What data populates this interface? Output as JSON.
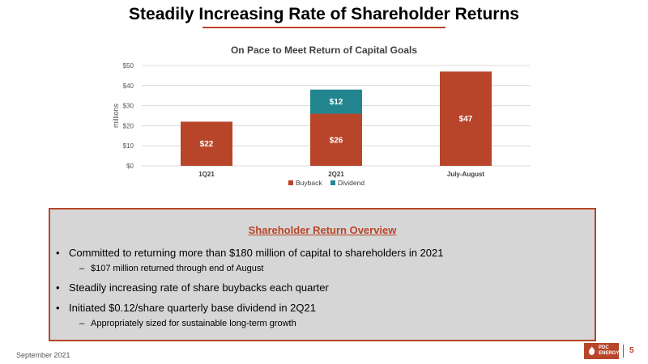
{
  "header": {
    "title": "Steadily Increasing Rate of Shareholder Returns"
  },
  "chart_data": {
    "type": "bar",
    "stacked": true,
    "title": "On Pace to Meet Return of Capital Goals",
    "ylabel": "millions",
    "xlabel": "",
    "categories": [
      "1Q21",
      "2Q21",
      "July-August"
    ],
    "series": [
      {
        "name": "Buyback",
        "values": [
          22,
          26,
          47
        ],
        "labels": [
          "$22",
          "$26",
          "$47"
        ],
        "color": "#b8452a"
      },
      {
        "name": "Dividend",
        "values": [
          0,
          12,
          0
        ],
        "labels": [
          "",
          "$12",
          ""
        ],
        "color": "#23868f"
      }
    ],
    "ylim": [
      0,
      50
    ],
    "yticks": [
      0,
      10,
      20,
      30,
      40,
      50
    ],
    "ytick_labels": [
      "$0",
      "$10",
      "$20",
      "$30",
      "$40",
      "$50"
    ],
    "grid": true,
    "legend_position": "bottom"
  },
  "overview": {
    "title": "Shareholder Return Overview",
    "bullets": [
      {
        "text": "Committed to returning more than $180 million of capital to shareholders in 2021",
        "sub": "$107 million returned through end of August"
      },
      {
        "text": "Steadily increasing rate of share buybacks each quarter",
        "sub": ""
      },
      {
        "text": "Initiated $0.12/share quarterly base dividend in 2Q21",
        "sub": "Appropriately sized for sustainable long-term growth"
      }
    ],
    "bullet_char": "•",
    "dash_char": "–"
  },
  "footer": {
    "date": "September 2021",
    "logo_line1": "PDC",
    "logo_line2": "ENERGY",
    "page_number": "5"
  },
  "colors": {
    "accent": "#b8452a",
    "teal": "#23868f",
    "panel": "#d6d6d6"
  }
}
